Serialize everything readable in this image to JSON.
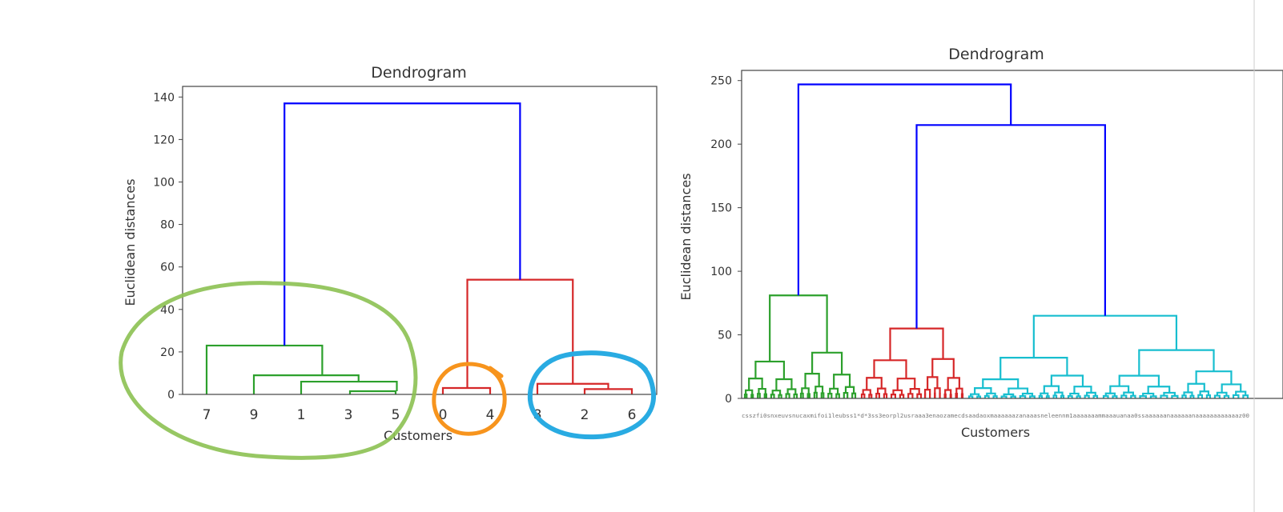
{
  "chart_data": [
    {
      "type": "dendrogram",
      "title": "Dendrogram",
      "xlabel": "Customers",
      "ylabel": "Euclidean distances",
      "ylim": [
        0,
        145
      ],
      "yticks": [
        0,
        20,
        40,
        60,
        80,
        100,
        120,
        140
      ],
      "leaves": [
        "7",
        "9",
        "1",
        "3",
        "5",
        "0",
        "4",
        "8",
        "2",
        "6"
      ],
      "merges": [
        {
          "a": "5",
          "b": "3-tip",
          "height": 1.5,
          "color": "#2ca02c"
        },
        {
          "a": "1",
          "b": "3|5",
          "height": 6,
          "color": "#2ca02c"
        },
        {
          "a": "9",
          "b": "1|3|5",
          "height": 9,
          "color": "#2ca02c"
        },
        {
          "a": "7",
          "b": "9|1|3|5",
          "height": 23,
          "color": "#2ca02c"
        },
        {
          "a": "0",
          "b": "4",
          "height": 3,
          "color": "#d62728"
        },
        {
          "a": "2",
          "b": "6",
          "height": 2.5,
          "color": "#d62728"
        },
        {
          "a": "8",
          "b": "2|6",
          "height": 5,
          "color": "#d62728"
        },
        {
          "a": "0|4",
          "b": "8|2|6",
          "height": 54,
          "color": "#d62728"
        },
        {
          "a": "green-cluster",
          "b": "red-cluster",
          "height": 137,
          "color": "#0000ff"
        }
      ],
      "annotations": [
        {
          "shape": "ellipse",
          "color": "#8cc152",
          "encloses": [
            "7",
            "9",
            "1",
            "3",
            "5"
          ]
        },
        {
          "shape": "ellipse",
          "color": "#f7941d",
          "encloses": [
            "0",
            "4"
          ]
        },
        {
          "shape": "ellipse",
          "color": "#29abe2",
          "encloses": [
            "8",
            "2",
            "6"
          ]
        }
      ]
    },
    {
      "type": "dendrogram",
      "title": "Dendrogram",
      "xlabel": "Customers",
      "ylabel": "Euclidean distances",
      "ylim": [
        0,
        258
      ],
      "yticks": [
        0,
        50,
        100,
        150,
        200,
        250
      ],
      "leaf_labels_text": "csszfi0snxeuvsnucaxmifoi1leubss1*d*3ss3eorpl2usraaa3enaozamecdsaadaoxmaaaaaazanaaasneleennm1aaaaaaammaaauanaa0ssaaaaaanaaaaaanaaaaaaaaaaaaz00",
      "top_merges": [
        {
          "name": "green-cluster",
          "height": 81,
          "color": "#2ca02c"
        },
        {
          "name": "red-cluster",
          "height": 55,
          "color": "#d62728"
        },
        {
          "name": "cyan-cluster",
          "height": 65,
          "color": "#17becf"
        },
        {
          "name": "red+cyan",
          "height": 215,
          "color": "#0000ff"
        },
        {
          "name": "root",
          "height": 247,
          "color": "#0000ff"
        }
      ]
    }
  ]
}
